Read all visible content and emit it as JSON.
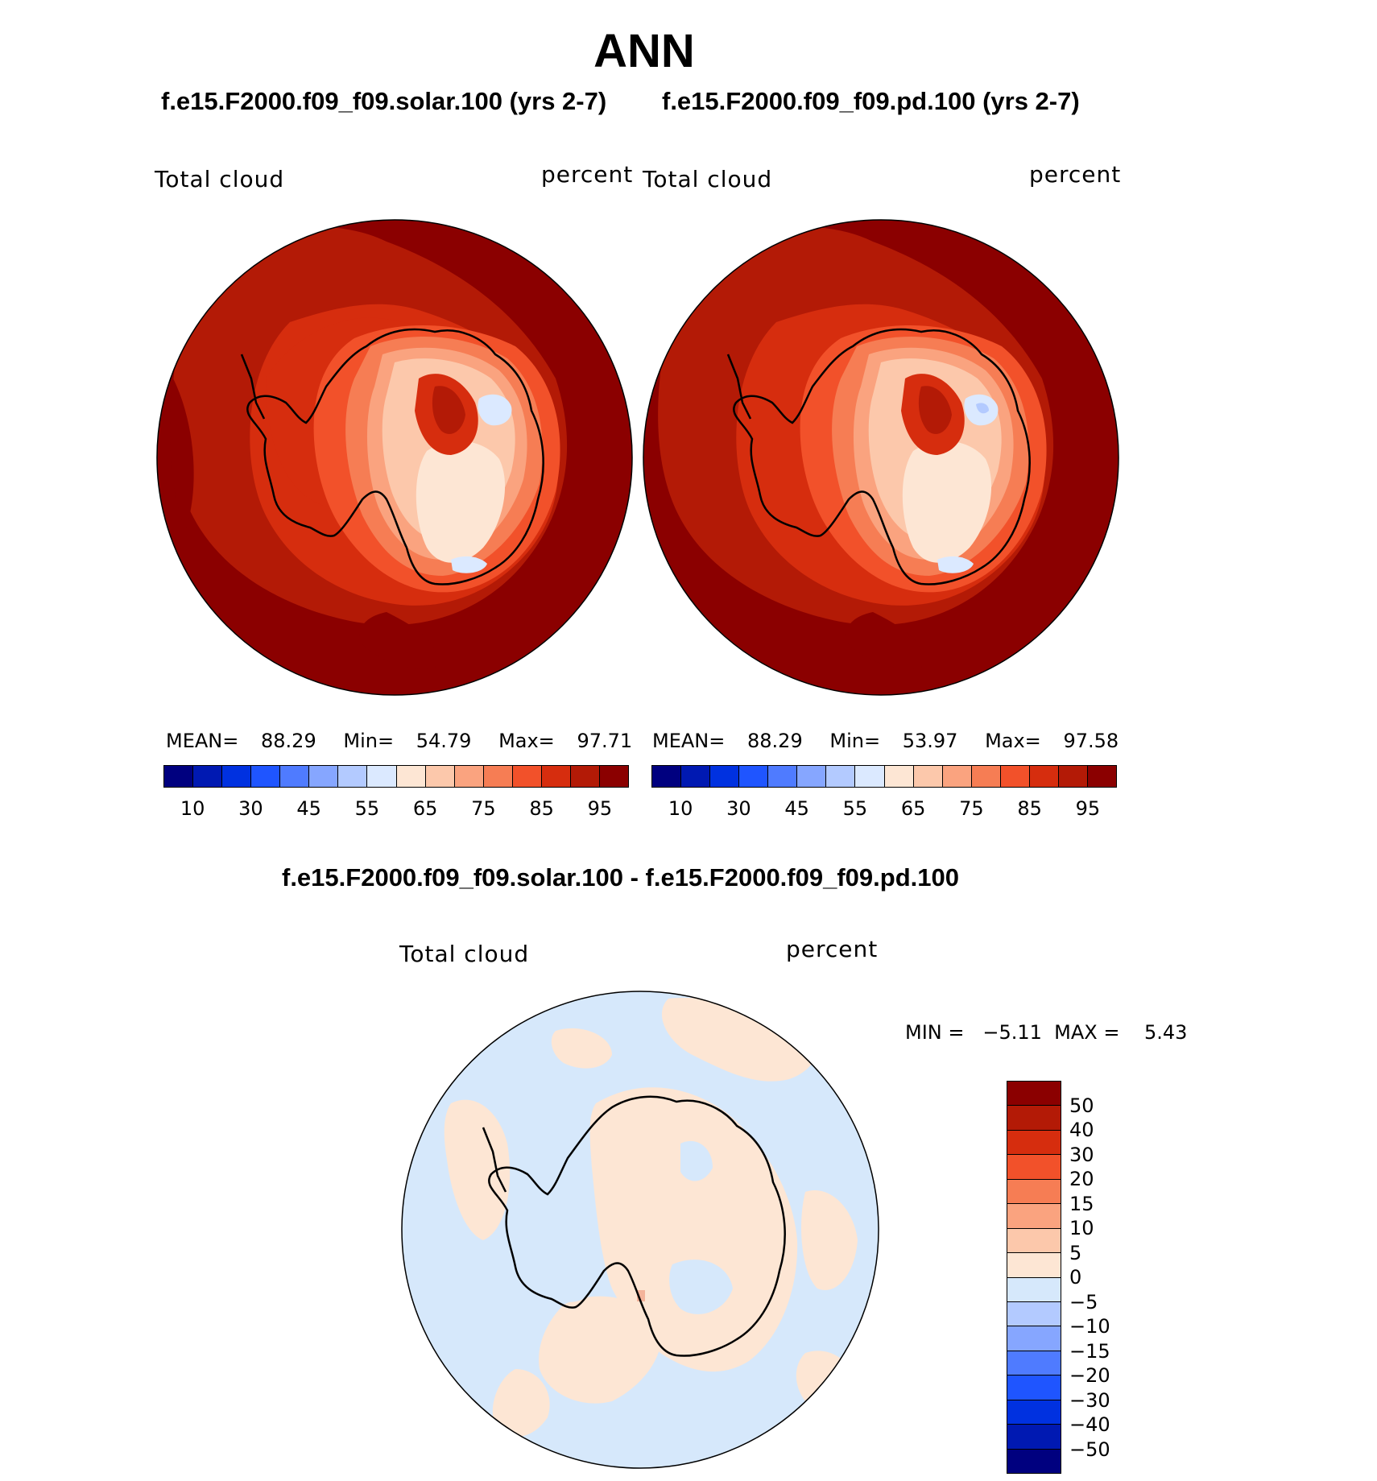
{
  "title": "ANN",
  "panels": {
    "left": {
      "case": "f.e15.F2000.f09_f09.solar.100 (yrs 2-7)",
      "variable": "Total cloud",
      "units": "percent",
      "mean_label": "MEAN=",
      "mean": "88.29",
      "min_label": "Min=",
      "min": "54.79",
      "max_label": "Max=",
      "max": "97.71"
    },
    "right": {
      "case": "f.e15.F2000.f09_f09.pd.100 (yrs 2-7)",
      "variable": "Total cloud",
      "units": "percent",
      "mean_label": "MEAN=",
      "mean": "88.29",
      "min_label": "Min=",
      "min": "53.97",
      "max_label": "Max=",
      "max": "97.58"
    },
    "diff": {
      "case": "f.e15.F2000.f09_f09.solar.100 - f.e15.F2000.f09_f09.pd.100",
      "variable": "Total cloud",
      "units": "percent",
      "minmax": "MIN =   −5.11  MAX =    5.43"
    }
  },
  "colorbar_abs": {
    "colors": [
      "#00007f",
      "#0019b2",
      "#0031e0",
      "#1f55ff",
      "#4f7bff",
      "#86a6ff",
      "#b3caff",
      "#dbe9ff",
      "#fde6d4",
      "#fcc8ab",
      "#faa37f",
      "#f67d54",
      "#f2512a",
      "#d62d0e",
      "#b31a06",
      "#8b0000"
    ],
    "tick_labels": [
      "10",
      "30",
      "45",
      "55",
      "65",
      "75",
      "85",
      "95"
    ]
  },
  "colorbar_diff": {
    "colors": [
      "#8b0000",
      "#b31a06",
      "#d62d0e",
      "#f2512a",
      "#f67d54",
      "#faa37f",
      "#fcc8ab",
      "#fde6d4",
      "#d6e8fb",
      "#b3caff",
      "#86a6ff",
      "#4f7bff",
      "#1f55ff",
      "#0031e0",
      "#0019b2",
      "#00007f"
    ],
    "tick_labels": [
      "50",
      "40",
      "30",
      "20",
      "15",
      "10",
      "5",
      "0",
      "−5",
      "−10",
      "−15",
      "−20",
      "−30",
      "−40",
      "−50"
    ]
  }
}
